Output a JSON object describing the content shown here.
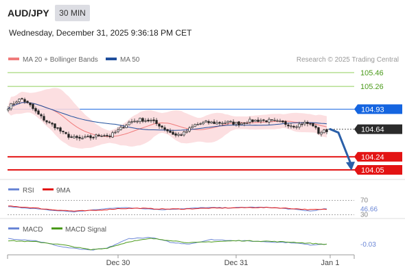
{
  "header": {
    "pair": "AUD/JPY",
    "timeframe": "30 MIN",
    "datetime": "Wednesday, December 31, 2025 9:36:18 PM CET"
  },
  "legend": {
    "ma20": "MA 20 + Bollinger Bands",
    "ma50": "MA 50",
    "credit": "Research © 2025 Trading Central",
    "rsi": "RSI",
    "rsi_ma": "9MA",
    "macd": "MACD",
    "macd_signal": "MACD Signal"
  },
  "colors": {
    "ma20": "#f07b7b",
    "ma50": "#1f4e9c",
    "bollinger_fill": "#fbd9dc",
    "resistance_green": "#8fcf5a",
    "resistance_green_text": "#4a9a1a",
    "pivot_blue": "#1565e0",
    "support_red": "#e31414",
    "current_dark": "#2b2b2b",
    "rsi_line": "#6a86d6",
    "rsi_ma_line": "#e31414",
    "macd_line": "#6a86d6",
    "macd_signal_line": "#4a9a1a",
    "arrow": "#2a5fa8"
  },
  "chart_data": [
    {
      "type": "candlestick",
      "title": "AUD/JPY 30 MIN",
      "x_ticks": [
        "Dec 30",
        "Dec 31",
        "Jan 1"
      ],
      "ylim": [
        103.95,
        105.55
      ],
      "levels": [
        {
          "value": 105.46,
          "label": "105.46",
          "kind": "resistance"
        },
        {
          "value": 105.26,
          "label": "105.26",
          "kind": "resistance"
        },
        {
          "value": 104.93,
          "label": "104.93",
          "kind": "pivot"
        },
        {
          "value": 104.64,
          "label": "104.64",
          "kind": "current"
        },
        {
          "value": 104.24,
          "label": "104.24",
          "kind": "support"
        },
        {
          "value": 104.05,
          "label": "104.05",
          "kind": "support"
        }
      ],
      "forecast": {
        "from": 104.64,
        "to": 104.05,
        "direction": "down"
      },
      "close_anchors": [
        [
          0,
          104.96
        ],
        [
          3,
          105.05
        ],
        [
          5,
          105.08
        ],
        [
          8,
          104.98
        ],
        [
          11,
          104.85
        ],
        [
          14,
          104.75
        ],
        [
          17,
          104.68
        ],
        [
          20,
          104.58
        ],
        [
          23,
          104.52
        ],
        [
          26,
          104.5
        ],
        [
          30,
          104.52
        ],
        [
          34,
          104.56
        ],
        [
          37,
          104.54
        ],
        [
          40,
          104.62
        ],
        [
          44,
          104.74
        ],
        [
          48,
          104.78
        ],
        [
          52,
          104.76
        ],
        [
          55,
          104.7
        ],
        [
          58,
          104.62
        ],
        [
          61,
          104.55
        ],
        [
          64,
          104.58
        ],
        [
          68,
          104.7
        ],
        [
          72,
          104.74
        ],
        [
          76,
          104.73
        ],
        [
          80,
          104.74
        ],
        [
          84,
          104.72
        ],
        [
          88,
          104.76
        ],
        [
          92,
          104.77
        ],
        [
          96,
          104.76
        ],
        [
          100,
          104.73
        ],
        [
          104,
          104.69
        ],
        [
          108,
          104.73
        ],
        [
          111,
          104.7
        ],
        [
          113,
          104.59
        ],
        [
          116,
          104.62
        ]
      ]
    },
    {
      "type": "line",
      "title": "RSI",
      "ylim": [
        25,
        75
      ],
      "tick_labels": [
        "70",
        "46.66",
        "30"
      ],
      "current": 46.66,
      "series": [
        {
          "name": "RSI",
          "anchors": [
            [
              0,
              52
            ],
            [
              8,
              48
            ],
            [
              16,
              42
            ],
            [
              24,
              38
            ],
            [
              32,
              44
            ],
            [
              40,
              50
            ],
            [
              48,
              48
            ],
            [
              56,
              44
            ],
            [
              64,
              47
            ],
            [
              72,
              50
            ],
            [
              80,
              49
            ],
            [
              88,
              51
            ],
            [
              96,
              50
            ],
            [
              104,
              45
            ],
            [
              110,
              40
            ],
            [
              116,
              46.66
            ]
          ]
        },
        {
          "name": "9MA",
          "anchors": [
            [
              0,
              54
            ],
            [
              8,
              50
            ],
            [
              16,
              44
            ],
            [
              24,
              40
            ],
            [
              32,
              42
            ],
            [
              40,
              47
            ],
            [
              48,
              48
            ],
            [
              56,
              46
            ],
            [
              64,
              46
            ],
            [
              72,
              48
            ],
            [
              80,
              49
            ],
            [
              88,
              50
            ],
            [
              96,
              50
            ],
            [
              104,
              47
            ],
            [
              110,
              44
            ],
            [
              116,
              45
            ]
          ]
        }
      ]
    },
    {
      "type": "line",
      "title": "MACD",
      "ylim": [
        -0.12,
        0.06
      ],
      "tick_labels": [
        "-0.03"
      ],
      "current": -0.03,
      "series": [
        {
          "name": "MACD",
          "anchors": [
            [
              0,
              0.02
            ],
            [
              10,
              0.0
            ],
            [
              20,
              -0.06
            ],
            [
              30,
              -0.09
            ],
            [
              36,
              -0.07
            ],
            [
              44,
              0.02
            ],
            [
              52,
              0.03
            ],
            [
              60,
              -0.02
            ],
            [
              66,
              -0.03
            ],
            [
              74,
              0.01
            ],
            [
              84,
              0.0
            ],
            [
              94,
              -0.01
            ],
            [
              104,
              -0.02
            ],
            [
              110,
              -0.04
            ],
            [
              116,
              -0.03
            ]
          ]
        },
        {
          "name": "MACD Signal",
          "anchors": [
            [
              0,
              0.0
            ],
            [
              10,
              -0.01
            ],
            [
              20,
              -0.04
            ],
            [
              30,
              -0.085
            ],
            [
              36,
              -0.07
            ],
            [
              44,
              -0.01
            ],
            [
              52,
              0.02
            ],
            [
              60,
              0.0
            ],
            [
              66,
              -0.02
            ],
            [
              74,
              -0.01
            ],
            [
              84,
              0.0
            ],
            [
              94,
              -0.005
            ],
            [
              104,
              -0.015
            ],
            [
              110,
              -0.025
            ],
            [
              116,
              -0.035
            ]
          ]
        }
      ]
    }
  ]
}
